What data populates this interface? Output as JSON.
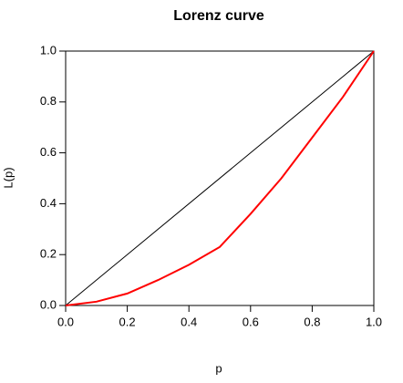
{
  "chart_data": {
    "type": "line",
    "title": "Lorenz curve",
    "x_label": "p",
    "y_label": "L(p)",
    "series": [
      {
        "color": "#000000",
        "x": [
          0,
          1
        ],
        "values": [
          0,
          1
        ]
      },
      {
        "color": "#ff0000",
        "x": [
          0,
          0.1,
          0.2,
          0.3,
          0.4,
          0.5,
          0.6,
          0.7,
          0.8,
          0.9,
          1.0
        ],
        "values": [
          0,
          0.015,
          0.047,
          0.1,
          0.16,
          0.23,
          0.36,
          0.5,
          0.66,
          0.82,
          1.0
        ]
      }
    ],
    "xlim": [
      0,
      1
    ],
    "ylim": [
      0,
      1
    ],
    "xticks": [
      {
        "value": 0,
        "label": "0.0"
      },
      {
        "value": 0.2,
        "label": "0.2"
      },
      {
        "value": 0.4,
        "label": "0.4"
      },
      {
        "value": 0.6,
        "label": "0.6"
      },
      {
        "value": 0.8,
        "label": "0.8"
      },
      {
        "value": 1,
        "label": "1.0"
      }
    ],
    "yticks": [
      {
        "value": 0,
        "label": "0.0"
      },
      {
        "value": 0.2,
        "label": "0.2"
      },
      {
        "value": 0.4,
        "label": "0.4"
      },
      {
        "value": 0.6,
        "label": "0.6"
      },
      {
        "value": 0.8,
        "label": "0.8"
      },
      {
        "value": 1,
        "label": "1.0"
      }
    ],
    "grid": false
  }
}
